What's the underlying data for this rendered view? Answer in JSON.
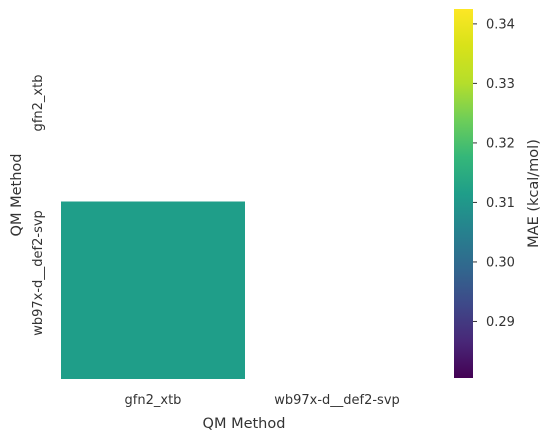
{
  "chart_data": {
    "type": "heatmap",
    "title": "",
    "xlabel": "QM Method",
    "ylabel": "QM Method",
    "x_categories": [
      "gfn2_xtb",
      "wb97x-d__def2-svp"
    ],
    "y_categories": [
      "gfn2_xtb",
      "wb97x-d__def2-svp"
    ],
    "cells": [
      {
        "row": "wb97x-d__def2-svp",
        "col": "gfn2_xtb",
        "value": 0.3115
      }
    ],
    "masked_note": "upper triangle and diagonal masked",
    "colormap": "viridis",
    "colorbar": {
      "label": "MAE (kcal/mol)",
      "range": [
        0.2805,
        0.3425
      ],
      "ticks": [
        0.29,
        0.3,
        0.31,
        0.32,
        0.33,
        0.34
      ],
      "tick_labels": [
        "0.29",
        "0.30",
        "0.31",
        "0.32",
        "0.33",
        "0.34"
      ]
    },
    "grid": false,
    "legend": "colorbar-right"
  }
}
